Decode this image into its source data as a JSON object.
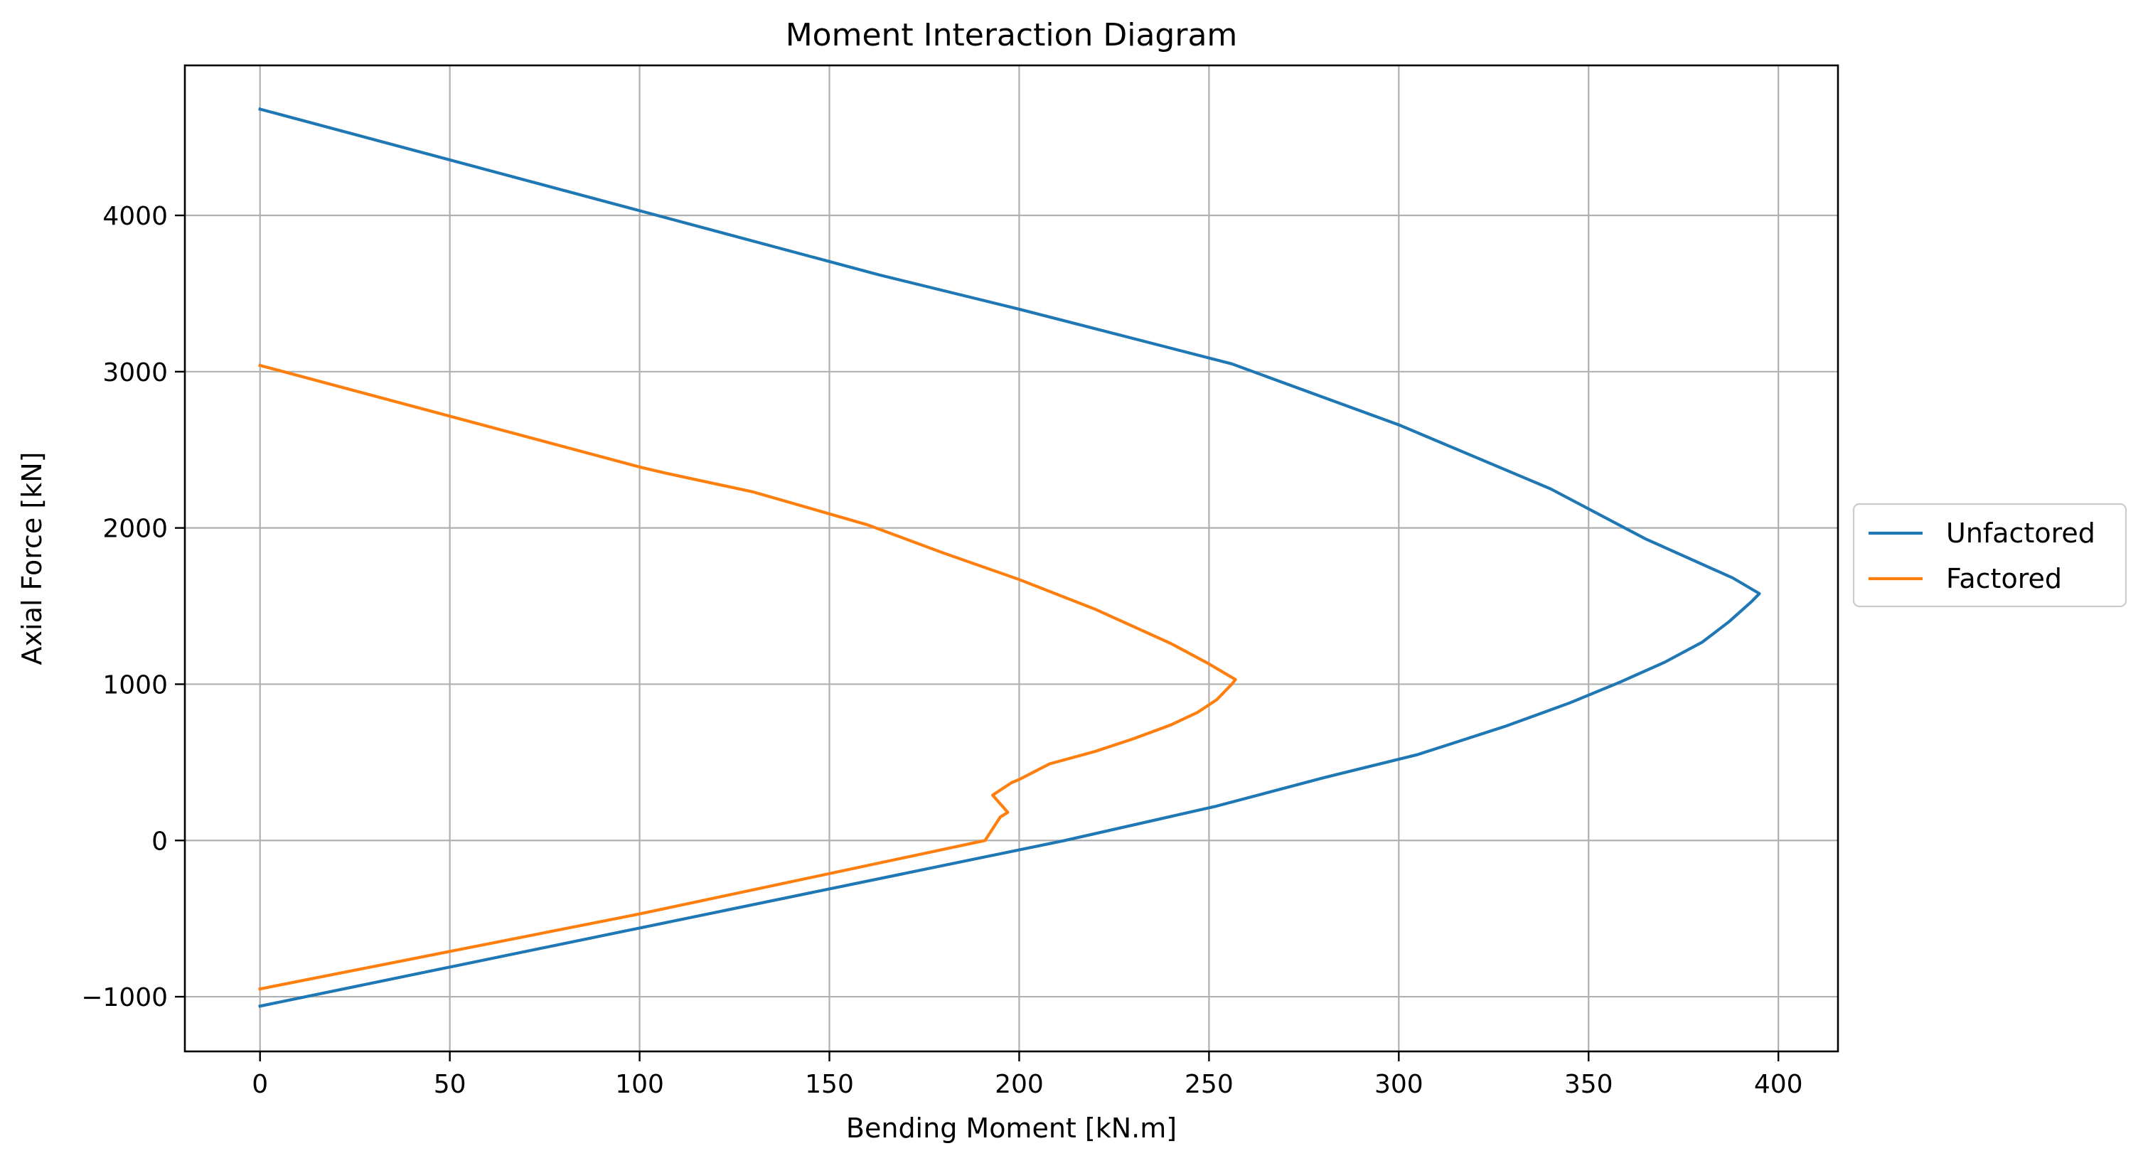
{
  "chart_data": {
    "type": "line",
    "title": "Moment Interaction Diagram",
    "xlabel": "Bending Moment [kN.m]",
    "ylabel": "Axial Force [kN]",
    "xlim": [
      -19.8,
      415.7
    ],
    "ylim": [
      -1350,
      4960
    ],
    "xticks": [
      0,
      50,
      100,
      150,
      200,
      250,
      300,
      350,
      400
    ],
    "xtick_labels": [
      "0",
      "50",
      "100",
      "150",
      "200",
      "250",
      "300",
      "350",
      "400"
    ],
    "yticks": [
      -1000,
      0,
      1000,
      2000,
      3000,
      4000
    ],
    "ytick_labels": [
      "−1000",
      "0",
      "1000",
      "2000",
      "3000",
      "4000"
    ],
    "grid": true,
    "legend_position": "center right, outside axes",
    "series": [
      {
        "name": "Unfactored",
        "color": "#1f77b4",
        "points": [
          [
            0,
            4680
          ],
          [
            100,
            4030
          ],
          [
            163,
            3620
          ],
          [
            200,
            3400
          ],
          [
            256,
            3050
          ],
          [
            300,
            2660
          ],
          [
            340,
            2250
          ],
          [
            365,
            1930
          ],
          [
            388,
            1680
          ],
          [
            395,
            1580
          ],
          [
            393,
            1530
          ],
          [
            387,
            1400
          ],
          [
            380,
            1270
          ],
          [
            370,
            1140
          ],
          [
            358,
            1010
          ],
          [
            345,
            880
          ],
          [
            328,
            730
          ],
          [
            305,
            550
          ],
          [
            280,
            400
          ],
          [
            252,
            220
          ],
          [
            212,
            0
          ],
          [
            100,
            -560
          ],
          [
            0,
            -1060
          ]
        ]
      },
      {
        "name": "Factored",
        "color": "#ff7f0e",
        "points": [
          [
            0,
            3040
          ],
          [
            100,
            2390
          ],
          [
            107,
            2350
          ],
          [
            130,
            2230
          ],
          [
            160,
            2020
          ],
          [
            180,
            1840
          ],
          [
            200,
            1670
          ],
          [
            220,
            1480
          ],
          [
            240,
            1260
          ],
          [
            250,
            1130
          ],
          [
            257,
            1030
          ],
          [
            256,
            1000
          ],
          [
            252,
            900
          ],
          [
            247,
            820
          ],
          [
            240,
            740
          ],
          [
            230,
            650
          ],
          [
            220,
            570
          ],
          [
            208,
            490
          ],
          [
            200,
            390
          ],
          [
            198,
            370
          ],
          [
            193,
            290
          ],
          [
            197,
            180
          ],
          [
            195,
            150
          ],
          [
            191,
            0
          ],
          [
            100,
            -470
          ],
          [
            0,
            -950
          ]
        ]
      }
    ]
  }
}
